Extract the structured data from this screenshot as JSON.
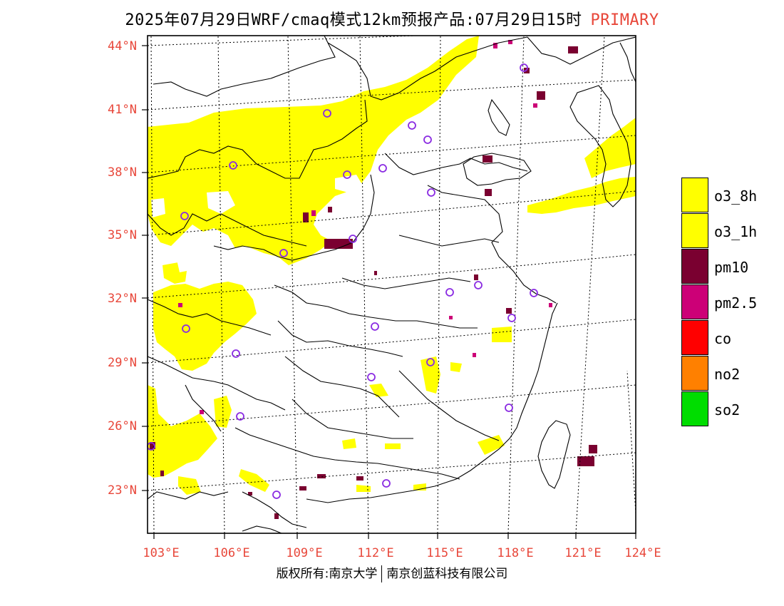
{
  "header": {
    "title": "2025年07月29日WRF/cmaq模式12km预报产品:07月29日15时",
    "tag": "PRIMARY"
  },
  "axes": {
    "lat_labels": [
      "44°N",
      "41°N",
      "38°N",
      "35°N",
      "32°N",
      "29°N",
      "26°N",
      "23°N"
    ],
    "lon_labels": [
      "103°E",
      "106°E",
      "109°E",
      "112°E",
      "115°E",
      "118°E",
      "121°E",
      "124°E"
    ]
  },
  "legend": {
    "items": [
      {
        "label": "o3_8h",
        "color": "#ffff00"
      },
      {
        "label": "o3_1h",
        "color": "#ffff00"
      },
      {
        "label": "pm10",
        "color": "#7a0030"
      },
      {
        "label": "pm2.5",
        "color": "#cc0077"
      },
      {
        "label": "co",
        "color": "#ff0000"
      },
      {
        "label": "no2",
        "color": "#ff8000"
      },
      {
        "label": "so2",
        "color": "#00dd00"
      }
    ]
  },
  "footer": {
    "left": "版权所有:南京大学",
    "right": "南京创蓝科技有限公司"
  },
  "colors": {
    "axis_label": "#e8473a",
    "station_marker": "#8a2be2"
  }
}
